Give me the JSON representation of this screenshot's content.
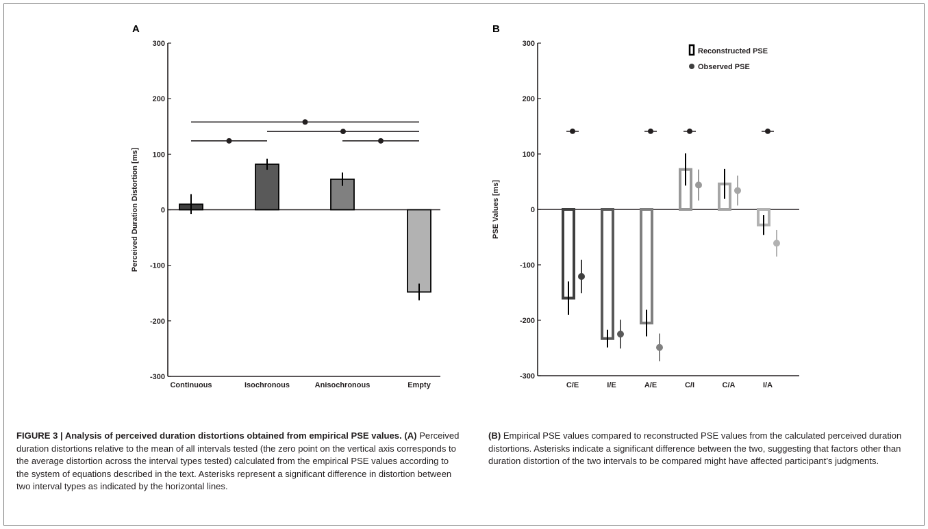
{
  "chart_data": [
    {
      "type": "bar",
      "panel_label": "A",
      "ylabel": "Perceived Duration Distortion [ms]",
      "ylim": [
        -300,
        300
      ],
      "yticks": [
        -300,
        -200,
        -100,
        0,
        100,
        200,
        300
      ],
      "categories": [
        "Continuous",
        "Isochronous",
        "Anisochronous",
        "Empty"
      ],
      "values": [
        10,
        82,
        55,
        -148
      ],
      "errors": [
        18,
        10,
        12,
        15
      ],
      "colors": [
        "#3f3f3f",
        "#595959",
        "#808080",
        "#b2b2b2"
      ],
      "significance": [
        {
          "from": 0,
          "to": 3,
          "y": 158
        },
        {
          "from": 0,
          "to": 1,
          "y": 124
        },
        {
          "from": 1,
          "to": 3,
          "y": 141
        },
        {
          "from": 2,
          "to": 3,
          "y": 124
        }
      ],
      "legend": null
    },
    {
      "type": "bar",
      "panel_label": "B",
      "ylabel": "PSE Values [ms]",
      "ylim": [
        -300,
        300
      ],
      "yticks": [
        -300,
        -200,
        -100,
        0,
        100,
        200,
        300
      ],
      "categories": [
        "C/E",
        "I/E",
        "A/E",
        "C/I",
        "C/A",
        "I/A"
      ],
      "series": [
        {
          "name": "Reconstructed PSE",
          "values": [
            -160,
            -233,
            -205,
            72,
            46,
            -28
          ],
          "errors": [
            30,
            16,
            24,
            29,
            27,
            18
          ]
        },
        {
          "name": "Observed PSE",
          "values": [
            -121,
            -225,
            -249,
            44,
            34,
            -61
          ],
          "errors": [
            30,
            26,
            25,
            28,
            27,
            24
          ]
        }
      ],
      "colors": [
        "#3f3f3f",
        "#595959",
        "#808080",
        "#999999",
        "#a6a6a6",
        "#b2b2b2"
      ],
      "asterisks": [
        0,
        2,
        3,
        5
      ],
      "asterisk_y": 141,
      "legend": "top-right"
    }
  ],
  "caption": {
    "fig_label": "FIGURE 3 | Analysis of perceived duration distortions obtained from empirical PSE values.",
    "part_a_label": "(A)",
    "part_a_text": "Perceived duration distortions relative to the mean of all intervals tested (the zero point on the vertical axis corresponds to the average distortion across the interval types tested) calculated from the empirical PSE values according to the system of equations described in the text. Asterisks represent a significant difference in distortion between two interval types as indicated by the horizontal lines.",
    "part_b_label": "(B)",
    "part_b_text": "Empirical PSE values compared to reconstructed PSE values from the calculated perceived duration distortions. Asterisks indicate a significant difference between the two, suggesting that factors other than duration distortion of the two intervals to be compared might have affected participant’s judgments."
  }
}
